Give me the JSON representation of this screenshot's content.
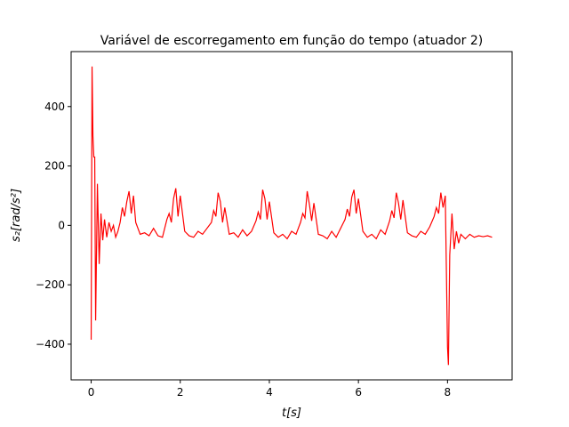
{
  "chart_data": {
    "type": "line",
    "title": "Variável de escorregamento em função do tempo (atuador 2)",
    "xlabel": "t[s]",
    "ylabel": "s₂[rad/s²]",
    "xlim": [
      -0.45,
      9.45
    ],
    "ylim": [
      -520,
      585
    ],
    "xticks": [
      0,
      2,
      4,
      6,
      8
    ],
    "yticks": [
      {
        "value": -400,
        "label": "−400"
      },
      {
        "value": -200,
        "label": "−200"
      },
      0,
      200,
      400
    ],
    "grid": false,
    "x": [
      0,
      0.02,
      0.04,
      0.06,
      0.08,
      0.1,
      0.14,
      0.18,
      0.22,
      0.26,
      0.3,
      0.35,
      0.4,
      0.45,
      0.5,
      0.55,
      0.6,
      0.65,
      0.7,
      0.75,
      0.8,
      0.85,
      0.9,
      0.95,
      1,
      1.1,
      1.2,
      1.3,
      1.4,
      1.5,
      1.6,
      1.7,
      1.75,
      1.8,
      1.85,
      1.9,
      1.95,
      2,
      2.1,
      2.2,
      2.3,
      2.4,
      2.5,
      2.6,
      2.7,
      2.75,
      2.8,
      2.85,
      2.9,
      2.95,
      3,
      3.1,
      3.2,
      3.3,
      3.4,
      3.5,
      3.6,
      3.7,
      3.75,
      3.8,
      3.85,
      3.9,
      3.95,
      4,
      4.1,
      4.2,
      4.3,
      4.4,
      4.5,
      4.6,
      4.7,
      4.75,
      4.8,
      4.85,
      4.9,
      4.95,
      5,
      5.1,
      5.2,
      5.3,
      5.4,
      5.5,
      5.6,
      5.7,
      5.75,
      5.8,
      5.85,
      5.9,
      5.95,
      6,
      6.1,
      6.2,
      6.3,
      6.4,
      6.5,
      6.6,
      6.7,
      6.75,
      6.8,
      6.85,
      6.9,
      6.95,
      7,
      7.1,
      7.2,
      7.3,
      7.4,
      7.5,
      7.6,
      7.7,
      7.75,
      7.8,
      7.85,
      7.9,
      7.95,
      8,
      8.02,
      8.05,
      8.1,
      8.15,
      8.2,
      8.25,
      8.3,
      8.4,
      8.5,
      8.6,
      8.7,
      8.8,
      8.9,
      9
    ],
    "series": [
      {
        "name": "s2",
        "color": "#ff0000",
        "values": [
          -385,
          535,
          300,
          230,
          230,
          -320,
          140,
          -130,
          40,
          -50,
          20,
          -40,
          10,
          -20,
          0,
          -40,
          -20,
          10,
          60,
          30,
          80,
          115,
          40,
          100,
          10,
          -30,
          -25,
          -35,
          -10,
          -35,
          -40,
          20,
          40,
          10,
          90,
          125,
          30,
          100,
          -20,
          -35,
          -40,
          -20,
          -30,
          -10,
          10,
          50,
          30,
          110,
          80,
          10,
          60,
          -30,
          -25,
          -40,
          -15,
          -35,
          -20,
          15,
          45,
          20,
          120,
          90,
          20,
          80,
          -25,
          -40,
          -30,
          -45,
          -20,
          -30,
          10,
          40,
          25,
          115,
          70,
          15,
          75,
          -30,
          -35,
          -45,
          -20,
          -40,
          -10,
          20,
          55,
          30,
          95,
          120,
          40,
          90,
          -20,
          -40,
          -30,
          -45,
          -15,
          -30,
          15,
          50,
          25,
          110,
          75,
          20,
          85,
          -25,
          -35,
          -40,
          -20,
          -30,
          -5,
          30,
          60,
          40,
          110,
          60,
          100,
          -410,
          -470,
          -100,
          40,
          -80,
          -20,
          -60,
          -30,
          -45,
          -30,
          -40,
          -35,
          -38,
          -35,
          -40
        ]
      }
    ]
  }
}
